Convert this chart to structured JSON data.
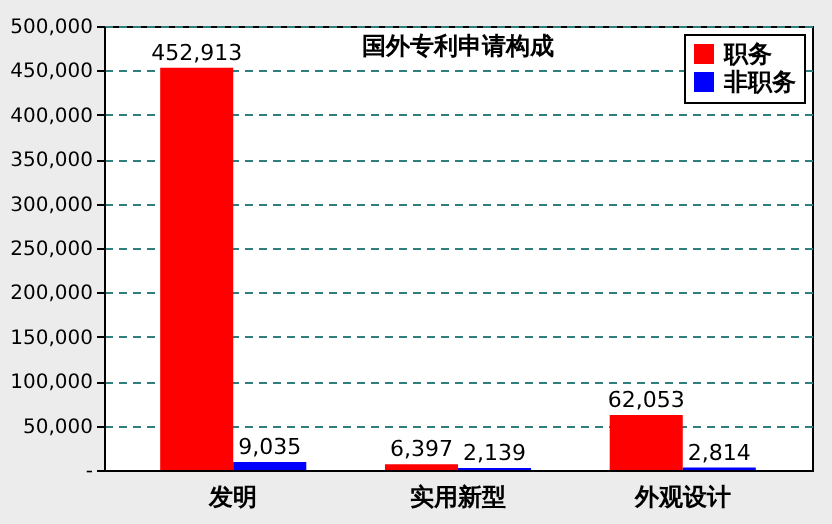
{
  "chart_data": {
    "type": "bar",
    "title": "国外专利申请构成",
    "categories": [
      "发明",
      "实用新型",
      "外观设计"
    ],
    "series": [
      {
        "name": "职务",
        "color": "#ff0000",
        "values": [
          452913,
          6397,
          62053
        ],
        "value_labels": [
          "452,913",
          "6,397",
          "62,053"
        ]
      },
      {
        "name": "非职务",
        "color": "#0000ff",
        "values": [
          9035,
          2139,
          2814
        ],
        "value_labels": [
          "9,035",
          "2,139",
          "2,814"
        ]
      }
    ],
    "ylim": [
      0,
      500000
    ],
    "yticks": [
      {
        "value": 0,
        "label": "-"
      },
      {
        "value": 50000,
        "label": "50,000"
      },
      {
        "value": 100000,
        "label": "100,000"
      },
      {
        "value": 150000,
        "label": "150,000"
      },
      {
        "value": 200000,
        "label": "200,000"
      },
      {
        "value": 250000,
        "label": "250,000"
      },
      {
        "value": 300000,
        "label": "300,000"
      },
      {
        "value": 350000,
        "label": "350,000"
      },
      {
        "value": 400000,
        "label": "400,000"
      },
      {
        "value": 450000,
        "label": "450,000"
      },
      {
        "value": 500000,
        "label": "500,000"
      }
    ],
    "grid": "y",
    "legend": "top right"
  }
}
